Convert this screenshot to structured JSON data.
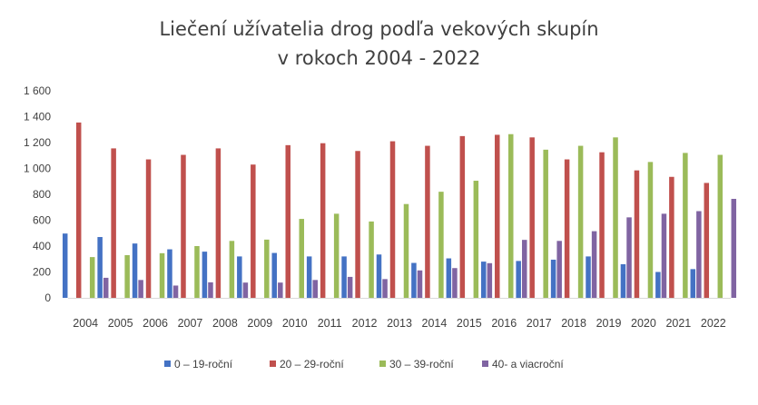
{
  "chart_data": {
    "type": "bar",
    "title_line1": "Liečení užívatelia drog podľa vekových skupín",
    "title_line2": "v rokoch 2004 - 2022",
    "xlabel": "",
    "ylabel": "",
    "ylim": [
      0,
      1600
    ],
    "yticks": [
      "1 600",
      "1 400",
      "1 200",
      "1 000",
      "800",
      "600",
      "400",
      "200",
      "0"
    ],
    "ytick_values": [
      1600,
      1400,
      1200,
      1000,
      800,
      600,
      400,
      200,
      0
    ],
    "grid": false,
    "legend_position": "bottom",
    "categories": [
      "2004",
      "2005",
      "2006",
      "2007",
      "2008",
      "2009",
      "2010",
      "2011",
      "2012",
      "2013",
      "2014",
      "2015",
      "2016",
      "2017",
      "2018",
      "2019",
      "2020",
      "2021",
      "2022"
    ],
    "series": [
      {
        "name": "0 – 19-roční",
        "color": "#4472c4",
        "values": [
          497,
          470,
          420,
          375,
          357,
          320,
          347,
          320,
          320,
          335,
          270,
          305,
          280,
          285,
          295,
          320,
          260,
          200,
          222
        ]
      },
      {
        "name": "20 – 29-roční",
        "color": "#c0504d",
        "values": [
          1355,
          1155,
          1070,
          1105,
          1155,
          1030,
          1180,
          1195,
          1135,
          1210,
          1175,
          1250,
          1260,
          1240,
          1070,
          1125,
          985,
          935,
          888
        ]
      },
      {
        "name": "30 – 39-roční",
        "color": "#9bbb59",
        "values": [
          315,
          330,
          345,
          400,
          440,
          450,
          610,
          650,
          590,
          725,
          820,
          905,
          1265,
          1145,
          1175,
          1240,
          1050,
          1120,
          1105
        ]
      },
      {
        "name": "40- a viacroční",
        "color": "#8064a2",
        "values": [
          155,
          138,
          95,
          120,
          118,
          118,
          138,
          162,
          145,
          212,
          230,
          268,
          448,
          440,
          515,
          622,
          650,
          670,
          765
        ]
      }
    ]
  }
}
